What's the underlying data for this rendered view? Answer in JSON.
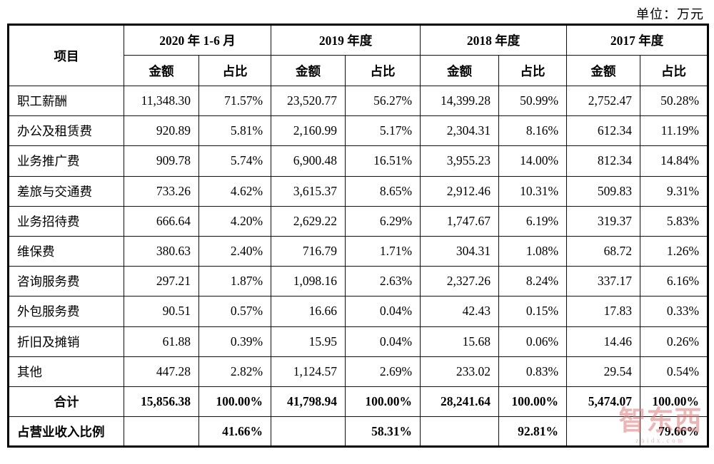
{
  "unit_label": "单位：万元",
  "table": {
    "col_item": "项目",
    "periods": [
      "2020 年 1-6 月",
      "2019 年度",
      "2018 年度",
      "2017 年度"
    ],
    "sub_headers": {
      "amount": "金额",
      "ratio": "占比"
    },
    "rows": [
      {
        "label": "职工薪酬",
        "cells": [
          "11,348.30",
          "71.57%",
          "23,520.77",
          "56.27%",
          "14,399.28",
          "50.99%",
          "2,752.47",
          "50.28%"
        ]
      },
      {
        "label": "办公及租赁费",
        "cells": [
          "920.89",
          "5.81%",
          "2,160.99",
          "5.17%",
          "2,304.31",
          "8.16%",
          "612.34",
          "11.19%"
        ]
      },
      {
        "label": "业务推广费",
        "cells": [
          "909.78",
          "5.74%",
          "6,900.48",
          "16.51%",
          "3,955.23",
          "14.00%",
          "812.34",
          "14.84%"
        ]
      },
      {
        "label": "差旅与交通费",
        "cells": [
          "733.26",
          "4.62%",
          "3,615.37",
          "8.65%",
          "2,912.46",
          "10.31%",
          "509.83",
          "9.31%"
        ]
      },
      {
        "label": "业务招待费",
        "cells": [
          "666.64",
          "4.20%",
          "2,629.22",
          "6.29%",
          "1,747.67",
          "6.19%",
          "319.37",
          "5.83%"
        ]
      },
      {
        "label": "维保费",
        "cells": [
          "380.63",
          "2.40%",
          "716.79",
          "1.71%",
          "304.31",
          "1.08%",
          "68.72",
          "1.26%"
        ]
      },
      {
        "label": "咨询服务费",
        "cells": [
          "297.21",
          "1.87%",
          "1,098.16",
          "2.63%",
          "2,327.26",
          "8.24%",
          "337.17",
          "6.16%"
        ]
      },
      {
        "label": "外包服务费",
        "cells": [
          "90.51",
          "0.57%",
          "16.66",
          "0.04%",
          "42.43",
          "0.15%",
          "17.83",
          "0.33%"
        ]
      },
      {
        "label": "折旧及摊销",
        "cells": [
          "61.88",
          "0.39%",
          "15.95",
          "0.04%",
          "15.68",
          "0.06%",
          "14.46",
          "0.26%"
        ]
      },
      {
        "label": "其他",
        "cells": [
          "447.28",
          "2.82%",
          "1,124.57",
          "2.69%",
          "233.02",
          "0.83%",
          "29.54",
          "0.54%"
        ]
      }
    ],
    "total_row": {
      "label": "合计",
      "cells": [
        "15,856.38",
        "100.00%",
        "41,798.94",
        "100.00%",
        "28,241.64",
        "100.00%",
        "5,474.07",
        "100.00%"
      ]
    },
    "revenue_ratio_row": {
      "label": "占营业收入比例",
      "cells": [
        "",
        "41.66%",
        "",
        "58.31%",
        "",
        "92.81%",
        "",
        "79.66%"
      ]
    }
  },
  "watermark": {
    "text": "智东西",
    "subtext": "zhidx.com",
    "color": "#d97c7c"
  }
}
